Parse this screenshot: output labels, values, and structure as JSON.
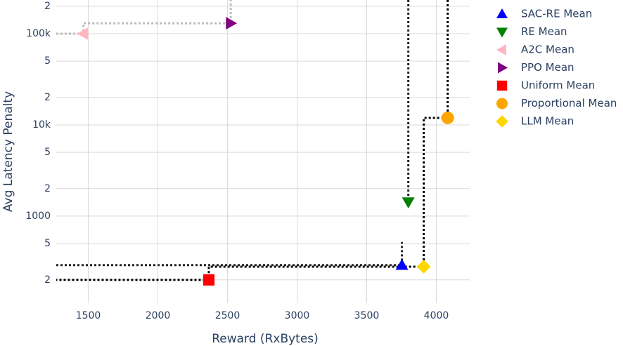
{
  "chart_data": {
    "type": "scatter",
    "x_label": "Reward (RxBytes)",
    "y_label": "Avg Latency Penalty",
    "xlim": [
      1270,
      4240
    ],
    "xticks": [
      1500,
      2000,
      2500,
      3000,
      3500,
      4000
    ],
    "ylim": [
      111,
      234000
    ],
    "y_log": true,
    "grid": true,
    "legend": "outside-right",
    "yticks": [
      {
        "value": 200000,
        "label": "2"
      },
      {
        "value": 100000,
        "label": "100k"
      },
      {
        "value": 50000,
        "label": "5"
      },
      {
        "value": 20000,
        "label": "2"
      },
      {
        "value": 10000,
        "label": "10k"
      },
      {
        "value": 5000,
        "label": "5"
      },
      {
        "value": 2000,
        "label": "2"
      },
      1000,
      {
        "value": 500,
        "label": "5"
      },
      {
        "value": 200,
        "label": "2"
      }
    ],
    "series": [
      {
        "name": "SAC-RE Mean",
        "color": "#0000ff",
        "symbol": "triangle-up",
        "x": [
          3753
        ],
        "values": [
          290
        ]
      },
      {
        "name": "RE Mean",
        "color": "#008000",
        "symbol": "triangle-down",
        "x": [
          3799
        ],
        "values": [
          1424
        ]
      },
      {
        "name": "A2C Mean",
        "color": "#ffb6c1",
        "symbol": "triangle-left",
        "x": [
          1465
        ],
        "values": [
          100000
        ]
      },
      {
        "name": "PPO Mean",
        "color": "#800080",
        "symbol": "triangle-right",
        "x": [
          2523
        ],
        "values": [
          130000
        ]
      },
      {
        "name": "Uniform Mean",
        "color": "#ff0000",
        "symbol": "square",
        "x": [
          2366
        ],
        "values": [
          200
        ]
      },
      {
        "name": "Proportional Mean",
        "color": "#ffa500",
        "symbol": "circle",
        "x": [
          4082
        ],
        "values": [
          11940
        ]
      },
      {
        "name": "LLM Mean",
        "color": "#ffd700",
        "symbol": "diamond",
        "x": [
          3910
        ],
        "values": [
          279
        ]
      }
    ],
    "lines": [
      {
        "color": "#bbbbbb",
        "x": [
          1270,
          1465,
          1465,
          2523,
          2523
        ],
        "y": [
          100000,
          100000,
          130000,
          130000,
          234000
        ]
      },
      {
        "color": "#222222",
        "x": [
          1270,
          3753,
          3753
        ],
        "y": [
          290,
          290,
          520
        ]
      },
      {
        "color": "#222222",
        "x": [
          3799,
          3799
        ],
        "y": [
          234000,
          1424
        ]
      },
      {
        "color": "#000000",
        "x": [
          4082,
          4082,
          3910,
          3910,
          2366,
          2366,
          1270
        ],
        "y": [
          234000,
          11940,
          11940,
          279,
          279,
          200,
          200
        ]
      }
    ]
  }
}
